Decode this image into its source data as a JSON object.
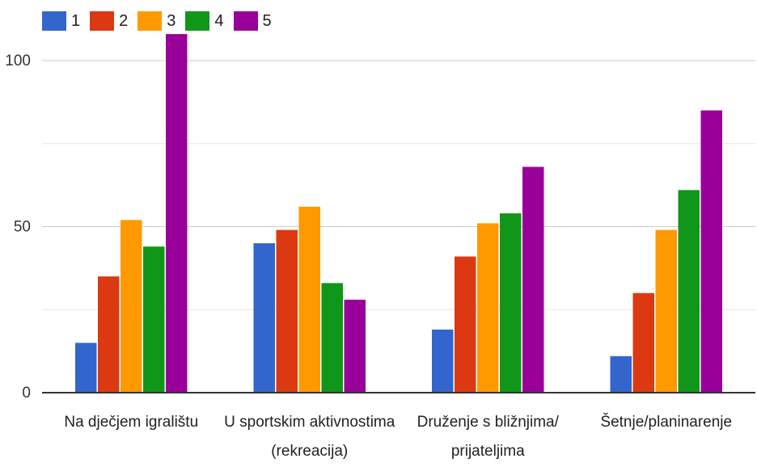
{
  "chart_data": {
    "type": "bar",
    "categories": [
      [
        "Na dječjem igralištu"
      ],
      [
        "U sportskim aktivnostima",
        "(rekreacija)"
      ],
      [
        "Druženje s bližnjima/",
        "prijateljima"
      ],
      [
        "Šetnje/planinarenje"
      ]
    ],
    "series": [
      {
        "name": "1",
        "color": "#3366cc",
        "values": [
          15,
          45,
          19,
          11
        ]
      },
      {
        "name": "2",
        "color": "#dc3912",
        "values": [
          35,
          49,
          41,
          30
        ]
      },
      {
        "name": "3",
        "color": "#ff9900",
        "values": [
          52,
          56,
          51,
          49
        ]
      },
      {
        "name": "4",
        "color": "#109618",
        "values": [
          44,
          33,
          54,
          61
        ]
      },
      {
        "name": "5",
        "color": "#990099",
        "values": [
          108,
          28,
          68,
          85
        ]
      }
    ],
    "y_ticks": [
      0,
      50,
      100
    ],
    "ylim": [
      0,
      100
    ],
    "grid": true,
    "legend_position": "top-left"
  }
}
